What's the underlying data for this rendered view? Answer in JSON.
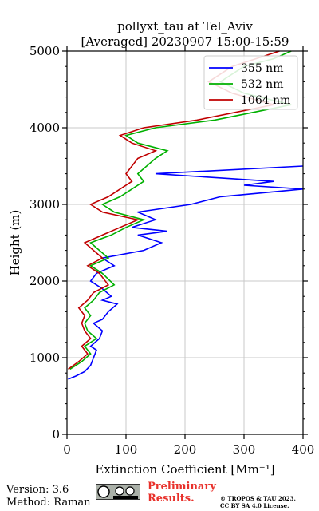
{
  "chart_data": {
    "type": "line",
    "title": "pollyxt_tau at Tel_Aviv",
    "subtitle": "[Averaged] 20230907 15:00-15:59",
    "xlabel": "Extinction Coefficient [Mm⁻¹]",
    "ylabel": "Height (m)",
    "xlim": [
      0,
      400
    ],
    "ylim": [
      0,
      5000
    ],
    "xticks": [
      "0",
      "100",
      "200",
      "300",
      "400"
    ],
    "yticks": [
      "0",
      "1000",
      "2000",
      "3000",
      "4000",
      "5000"
    ],
    "grid": true,
    "legend_position": "top-right",
    "series": [
      {
        "name": "355 nm",
        "color": "#0000ff",
        "points": [
          [
            2,
            720
          ],
          [
            15,
            760
          ],
          [
            30,
            820
          ],
          [
            40,
            900
          ],
          [
            45,
            1000
          ],
          [
            50,
            1100
          ],
          [
            40,
            1150
          ],
          [
            55,
            1250
          ],
          [
            60,
            1350
          ],
          [
            45,
            1450
          ],
          [
            60,
            1500
          ],
          [
            70,
            1600
          ],
          [
            85,
            1700
          ],
          [
            60,
            1750
          ],
          [
            75,
            1800
          ],
          [
            60,
            1900
          ],
          [
            40,
            2000
          ],
          [
            50,
            2100
          ],
          [
            80,
            2200
          ],
          [
            60,
            2300
          ],
          [
            130,
            2400
          ],
          [
            160,
            2500
          ],
          [
            120,
            2600
          ],
          [
            170,
            2650
          ],
          [
            110,
            2700
          ],
          [
            150,
            2800
          ],
          [
            120,
            2900
          ],
          [
            210,
            3000
          ],
          [
            260,
            3100
          ],
          [
            400,
            3200
          ],
          [
            300,
            3250
          ],
          [
            350,
            3300
          ],
          [
            150,
            3400
          ],
          [
            400,
            3500
          ]
        ]
      },
      {
        "name": "532 nm",
        "color": "#00b000",
        "points": [
          [
            5,
            850
          ],
          [
            25,
            950
          ],
          [
            40,
            1050
          ],
          [
            30,
            1150
          ],
          [
            50,
            1250
          ],
          [
            35,
            1350
          ],
          [
            30,
            1450
          ],
          [
            40,
            1550
          ],
          [
            30,
            1650
          ],
          [
            45,
            1750
          ],
          [
            55,
            1850
          ],
          [
            80,
            1950
          ],
          [
            60,
            2100
          ],
          [
            40,
            2200
          ],
          [
            70,
            2300
          ],
          [
            55,
            2400
          ],
          [
            40,
            2500
          ],
          [
            75,
            2600
          ],
          [
            100,
            2700
          ],
          [
            130,
            2800
          ],
          [
            80,
            2900
          ],
          [
            60,
            3000
          ],
          [
            90,
            3100
          ],
          [
            110,
            3200
          ],
          [
            130,
            3300
          ],
          [
            120,
            3400
          ],
          [
            150,
            3600
          ],
          [
            170,
            3700
          ],
          [
            120,
            3800
          ],
          [
            100,
            3900
          ],
          [
            150,
            4000
          ],
          [
            250,
            4100
          ],
          [
            380,
            4300
          ],
          [
            300,
            4450
          ],
          [
            260,
            4600
          ],
          [
            300,
            4800
          ],
          [
            350,
            4900
          ],
          [
            380,
            5000
          ]
        ]
      },
      {
        "name": "1064 nm",
        "color": "#c00000",
        "points": [
          [
            2,
            850
          ],
          [
            20,
            950
          ],
          [
            35,
            1050
          ],
          [
            25,
            1150
          ],
          [
            40,
            1250
          ],
          [
            30,
            1350
          ],
          [
            25,
            1450
          ],
          [
            30,
            1550
          ],
          [
            20,
            1650
          ],
          [
            35,
            1750
          ],
          [
            45,
            1850
          ],
          [
            70,
            1950
          ],
          [
            55,
            2100
          ],
          [
            35,
            2200
          ],
          [
            60,
            2300
          ],
          [
            45,
            2400
          ],
          [
            30,
            2500
          ],
          [
            60,
            2600
          ],
          [
            90,
            2700
          ],
          [
            120,
            2800
          ],
          [
            60,
            2900
          ],
          [
            40,
            3000
          ],
          [
            70,
            3100
          ],
          [
            90,
            3200
          ],
          [
            110,
            3300
          ],
          [
            100,
            3400
          ],
          [
            120,
            3600
          ],
          [
            150,
            3700
          ],
          [
            110,
            3800
          ],
          [
            90,
            3900
          ],
          [
            130,
            4000
          ],
          [
            220,
            4100
          ],
          [
            350,
            4300
          ],
          [
            280,
            4450
          ],
          [
            240,
            4600
          ],
          [
            280,
            4800
          ],
          [
            320,
            4900
          ],
          [
            360,
            5000
          ]
        ]
      }
    ]
  },
  "footer": {
    "version": "Version: 3.6",
    "method": "Method: Raman",
    "preliminary_line1": "Preliminary",
    "preliminary_line2": "Results.",
    "copyright_line1": "© TROPOS & TAU 2023.",
    "copyright_line2": "CC BY SA 4.0 License."
  }
}
